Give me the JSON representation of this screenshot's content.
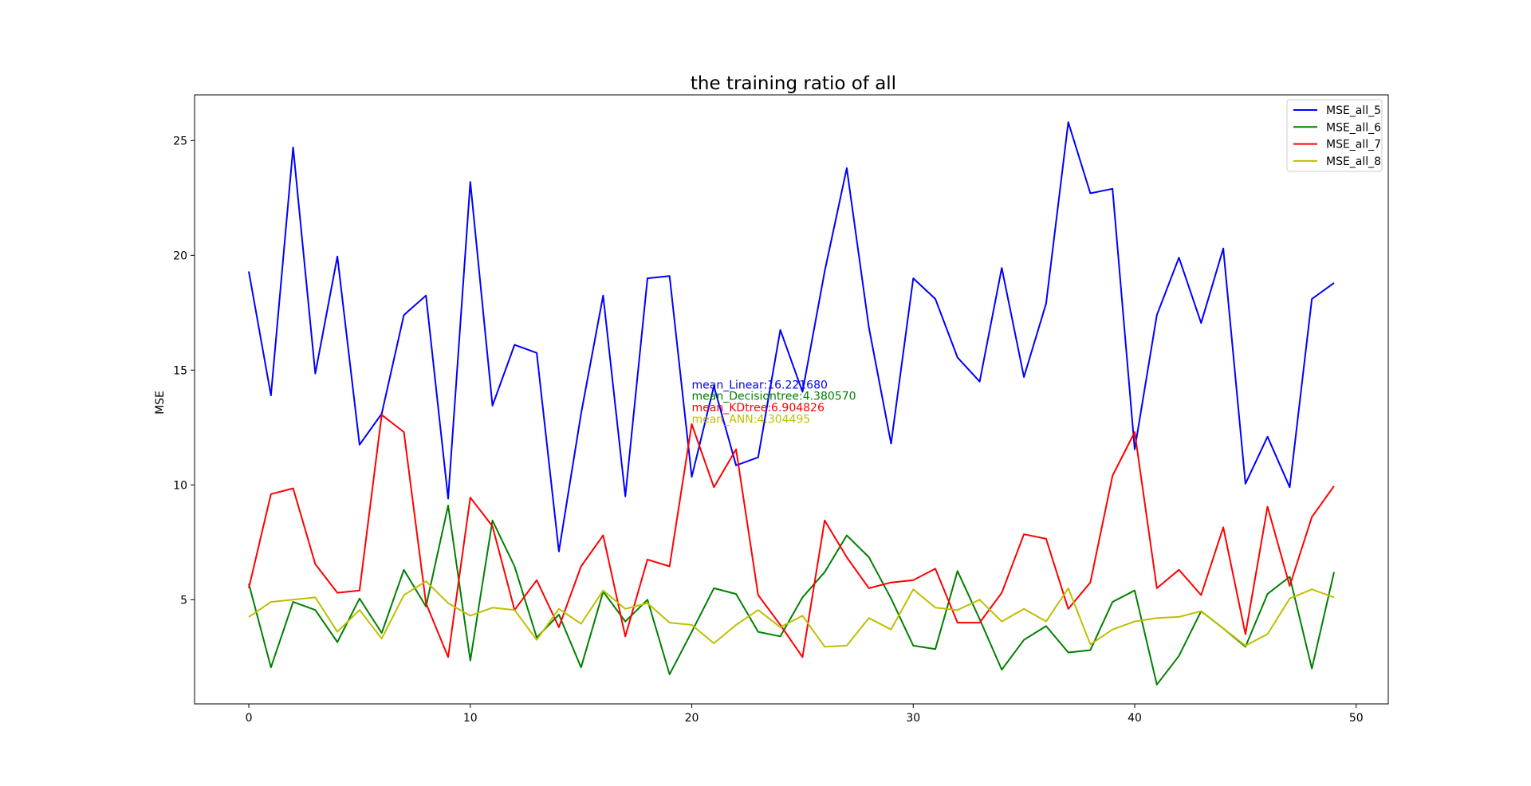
{
  "chart_data": {
    "type": "line",
    "title": "the training ratio of all",
    "xlabel": "",
    "ylabel": "MSE",
    "xlim": [
      -2.45,
      51.45
    ],
    "ylim": [
      0.46,
      26.99
    ],
    "xticks": [
      0,
      10,
      20,
      30,
      40,
      50
    ],
    "yticks": [
      5,
      10,
      15,
      20,
      25
    ],
    "grid": false,
    "legend_position": "top-right",
    "series": [
      {
        "name": "MSE_all_5",
        "color": "#0000ff",
        "y": [
          19.3,
          13.9,
          24.7,
          14.85,
          19.95,
          11.75,
          13.1,
          17.4,
          18.25,
          9.4,
          23.2,
          13.45,
          16.1,
          15.75,
          7.1,
          13.1,
          18.25,
          9.5,
          19.0,
          19.1,
          10.35,
          14.3,
          10.85,
          11.2,
          16.75,
          14.05,
          19.3,
          23.8,
          16.85,
          11.8,
          19.0,
          18.1,
          15.55,
          14.5,
          19.45,
          14.7,
          17.9,
          25.8,
          22.7,
          22.9,
          11.55,
          17.4,
          19.9,
          17.05,
          20.3,
          10.05,
          12.1,
          9.9,
          18.1,
          18.8
        ]
      },
      {
        "name": "MSE_all_6",
        "color": "#008000",
        "y": [
          5.7,
          2.05,
          4.9,
          4.55,
          3.15,
          5.05,
          3.55,
          6.3,
          4.7,
          9.1,
          2.35,
          8.45,
          6.45,
          3.35,
          4.35,
          2.05,
          5.35,
          4.05,
          5.0,
          1.75,
          3.6,
          5.5,
          5.25,
          3.6,
          3.4,
          5.1,
          6.2,
          7.8,
          6.85,
          5.05,
          3.0,
          2.85,
          6.25,
          4.15,
          1.95,
          3.25,
          3.85,
          2.7,
          2.8,
          4.9,
          5.4,
          1.3,
          2.55,
          4.5,
          3.75,
          2.95,
          5.25,
          6.0,
          2.0,
          6.2
        ]
      },
      {
        "name": "MSE_all_7",
        "color": "#ff0000",
        "y": [
          5.5,
          9.6,
          9.85,
          6.55,
          5.3,
          5.4,
          13.05,
          12.3,
          4.85,
          2.5,
          9.45,
          8.2,
          4.55,
          5.85,
          3.8,
          6.45,
          7.8,
          3.4,
          6.75,
          6.45,
          12.65,
          9.9,
          11.55,
          5.2,
          3.9,
          2.5,
          8.45,
          6.85,
          5.5,
          5.75,
          5.85,
          6.35,
          4.0,
          4.0,
          5.3,
          7.85,
          7.65,
          4.6,
          5.75,
          10.4,
          12.3,
          5.5,
          6.3,
          5.2,
          8.15,
          3.5,
          9.05,
          5.6,
          8.6,
          9.95
        ]
      },
      {
        "name": "MSE_all_8",
        "color": "#bfbf00",
        "y": [
          4.25,
          4.9,
          5.0,
          5.1,
          3.6,
          4.55,
          3.3,
          5.2,
          5.8,
          4.85,
          4.3,
          4.65,
          4.55,
          3.25,
          4.6,
          3.95,
          5.4,
          4.6,
          4.85,
          4.0,
          3.9,
          3.1,
          3.9,
          4.55,
          3.8,
          4.3,
          2.95,
          3.0,
          4.2,
          3.7,
          5.45,
          4.65,
          4.55,
          5.0,
          4.05,
          4.6,
          4.05,
          5.5,
          3.05,
          3.7,
          4.05,
          4.2,
          4.25,
          4.5,
          3.75,
          3.0,
          3.5,
          5.05,
          5.45,
          5.1
        ]
      }
    ],
    "annotations": [
      {
        "text": "mean_Linear:16.221680",
        "color": "#0000ff",
        "x": 20,
        "y": 14.2
      },
      {
        "text": "mean_Decisiontree:4.380570",
        "color": "#008000",
        "x": 20,
        "y": 13.7
      },
      {
        "text": "mean_KDtree:6.904826",
        "color": "#ff0000",
        "x": 20,
        "y": 13.2
      },
      {
        "text": "mean_ANN:4.304495",
        "color": "#bfbf00",
        "x": 20,
        "y": 12.7
      }
    ]
  }
}
